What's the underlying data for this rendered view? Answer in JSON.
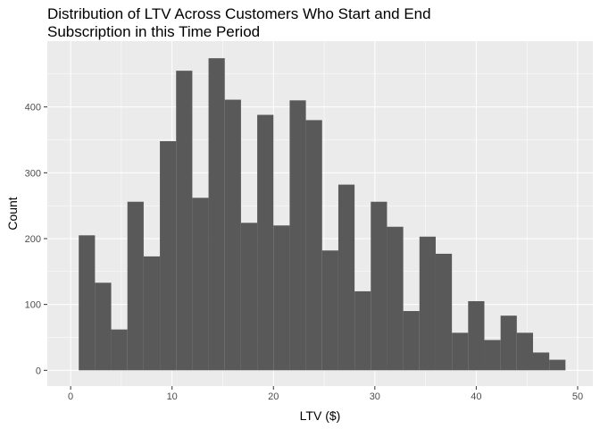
{
  "chart_data": {
    "type": "bar",
    "title_lines": [
      "Distribution of LTV Across Customers Who Start and End",
      "Subscription in this Time Period"
    ],
    "xlabel": "LTV ($)",
    "ylabel": "Count",
    "x_ticks": [
      0,
      10,
      20,
      30,
      40,
      50
    ],
    "y_ticks": [
      0,
      100,
      200,
      300,
      400
    ],
    "xlim": [
      -2.3,
      51.5
    ],
    "ylim": [
      -24,
      500
    ],
    "bin_width": 1.6,
    "bins": [
      {
        "start": 0.8,
        "count": 205
      },
      {
        "start": 2.4,
        "count": 133
      },
      {
        "start": 4.0,
        "count": 62
      },
      {
        "start": 5.6,
        "count": 256
      },
      {
        "start": 7.2,
        "count": 173
      },
      {
        "start": 8.8,
        "count": 348
      },
      {
        "start": 10.4,
        "count": 455
      },
      {
        "start": 12.0,
        "count": 262
      },
      {
        "start": 13.6,
        "count": 474
      },
      {
        "start": 15.2,
        "count": 411
      },
      {
        "start": 16.8,
        "count": 224
      },
      {
        "start": 18.4,
        "count": 388
      },
      {
        "start": 20.0,
        "count": 220
      },
      {
        "start": 21.6,
        "count": 410
      },
      {
        "start": 23.2,
        "count": 380
      },
      {
        "start": 24.8,
        "count": 182
      },
      {
        "start": 26.4,
        "count": 282
      },
      {
        "start": 28.0,
        "count": 120
      },
      {
        "start": 29.6,
        "count": 256
      },
      {
        "start": 31.2,
        "count": 218
      },
      {
        "start": 32.8,
        "count": 90
      },
      {
        "start": 34.4,
        "count": 203
      },
      {
        "start": 36.0,
        "count": 177
      },
      {
        "start": 37.6,
        "count": 57
      },
      {
        "start": 39.2,
        "count": 105
      },
      {
        "start": 40.8,
        "count": 46
      },
      {
        "start": 42.4,
        "count": 83
      },
      {
        "start": 44.0,
        "count": 57
      },
      {
        "start": 45.6,
        "count": 27
      },
      {
        "start": 47.2,
        "count": 16
      }
    ],
    "grid": true,
    "legend": "none",
    "colors": {
      "panel": "#ebebeb",
      "grid": "#ffffff",
      "bar": "#595959"
    }
  }
}
